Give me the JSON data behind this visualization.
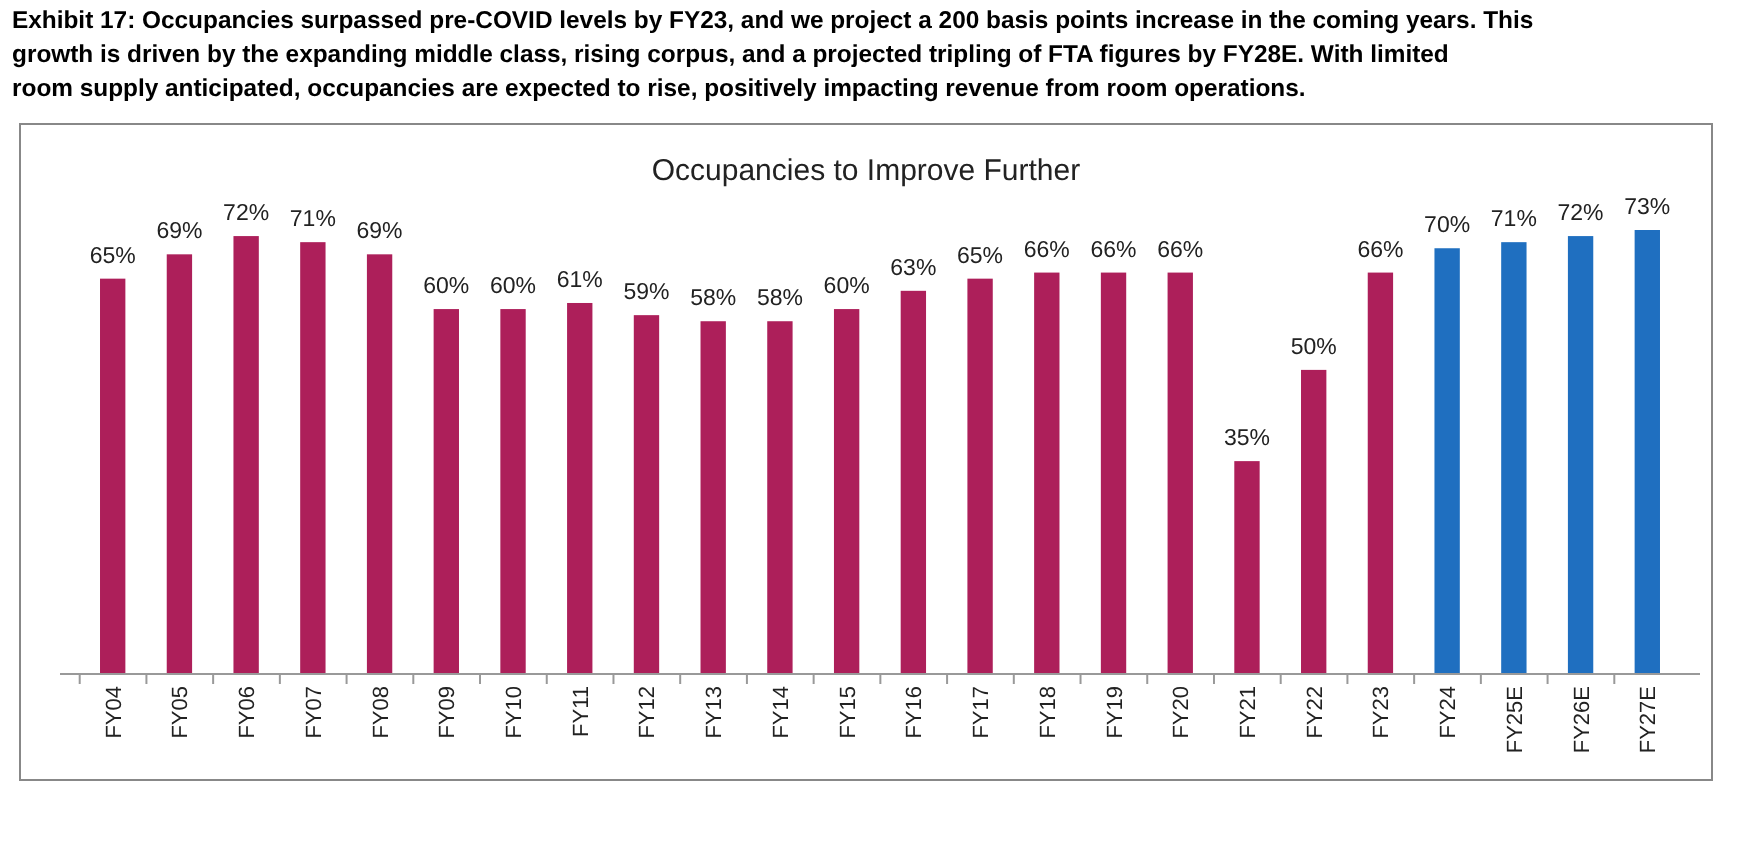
{
  "chart_data": {
    "type": "bar",
    "title": "Exhibit 17: Occupancies surpassed pre-COVID levels by FY23, and we project a 200 basis points increase in the coming years. This growth is driven by the expanding middle class, rising corpus, and a projected tripling of FTA figures by FY28E. With limited room supply anticipated, occupancies are expected to rise, positively impacting revenue from room operations.",
    "subtitle": "Occupancies to Improve Further",
    "categories": [
      "FY04",
      "FY05",
      "FY06",
      "FY07",
      "FY08",
      "FY09",
      "FY10",
      "FY11",
      "FY12",
      "FY13",
      "FY14",
      "FY15",
      "FY16",
      "FY17",
      "FY18",
      "FY19",
      "FY20",
      "FY21",
      "FY22",
      "FY23",
      "FY24",
      "FY25E",
      "FY26E",
      "FY27E"
    ],
    "values": [
      65,
      69,
      72,
      71,
      69,
      60,
      60,
      61,
      59,
      58,
      58,
      60,
      63,
      65,
      66,
      66,
      66,
      35,
      50,
      66,
      70,
      71,
      72,
      73
    ],
    "value_labels": [
      "65%",
      "69%",
      "72%",
      "71%",
      "69%",
      "60%",
      "60%",
      "61%",
      "59%",
      "58%",
      "58%",
      "60%",
      "63%",
      "65%",
      "66%",
      "66%",
      "66%",
      "35%",
      "50%",
      "66%",
      "70%",
      "71%",
      "72%",
      "73%"
    ],
    "colors": [
      "#ad1f5a",
      "#ad1f5a",
      "#ad1f5a",
      "#ad1f5a",
      "#ad1f5a",
      "#ad1f5a",
      "#ad1f5a",
      "#ad1f5a",
      "#ad1f5a",
      "#ad1f5a",
      "#ad1f5a",
      "#ad1f5a",
      "#ad1f5a",
      "#ad1f5a",
      "#ad1f5a",
      "#ad1f5a",
      "#ad1f5a",
      "#ad1f5a",
      "#ad1f5a",
      "#ad1f5a",
      "#1f6fc0",
      "#1f6fc0",
      "#1f6fc0",
      "#1f6fc0"
    ]
  }
}
